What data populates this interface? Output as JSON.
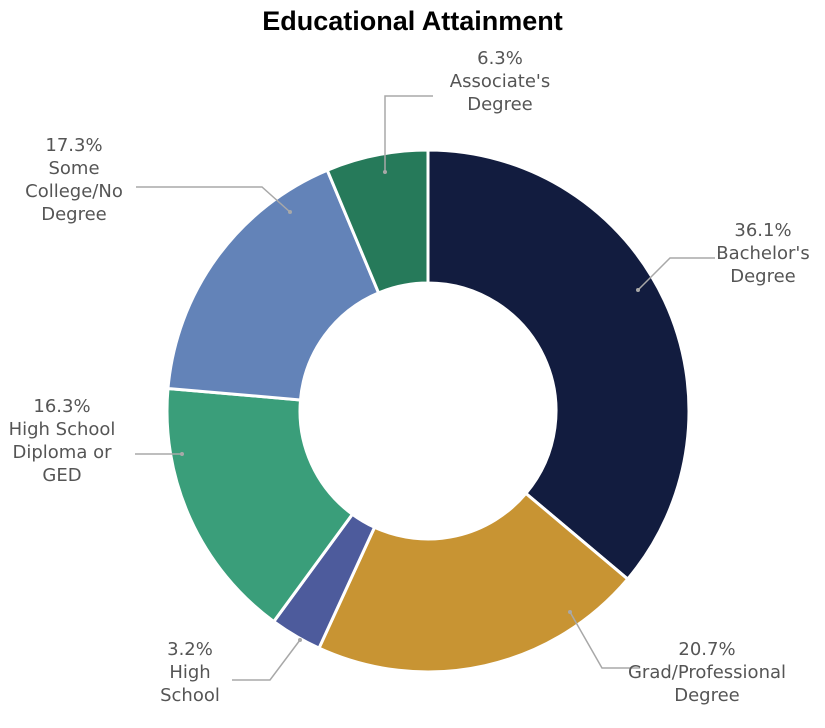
{
  "chart_data": {
    "type": "pie",
    "variant": "donut",
    "title": "Educational Attainment",
    "start_angle_deg": 0,
    "direction": "clockwise",
    "slices": [
      {
        "label": "Bachelor's Degree",
        "label_lines": [
          "36.1%",
          "Bachelor's",
          "Degree"
        ],
        "value": 36.1,
        "value_label": "36.1%",
        "color": "#121c3f"
      },
      {
        "label": "Grad/Professional Degree",
        "label_lines": [
          "20.7%",
          "Grad/Professional",
          "Degree"
        ],
        "value": 20.7,
        "value_label": "20.7%",
        "color": "#c89433"
      },
      {
        "label": "High School",
        "label_lines": [
          "3.2%",
          "High",
          "School"
        ],
        "value": 3.2,
        "value_label": "3.2%",
        "color": "#4d5b9c"
      },
      {
        "label": "High School Diploma or GED",
        "label_lines": [
          "16.3%",
          "High School",
          "Diploma or",
          "GED"
        ],
        "value": 16.3,
        "value_label": "16.3%",
        "color": "#3a9e7a"
      },
      {
        "label": "Some College/No Degree",
        "label_lines": [
          "17.3%",
          "Some",
          "College/No",
          "Degree"
        ],
        "value": 17.3,
        "value_label": "17.3%",
        "color": "#6383b8"
      },
      {
        "label": "Associate's Degree",
        "label_lines": [
          "6.3%",
          "Associate's",
          "Degree"
        ],
        "value": 6.3,
        "value_label": "6.3%",
        "color": "#267a5a"
      }
    ],
    "leader_line_color": "#a8a8a8"
  }
}
